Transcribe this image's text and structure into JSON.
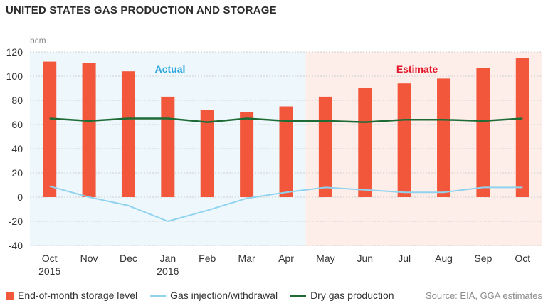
{
  "title": "UNITED STATES GAS PRODUCTION AND STORAGE",
  "unit": "bcm",
  "source": "Source: EIA, GGA estimates",
  "colors": {
    "bar": "#f2573c",
    "injection": "#8fd3ef",
    "production": "#1e6b36",
    "actual_bg": "#eef7fc",
    "estimate_bg": "#fdeee9",
    "actual_text": "#2aa6dc",
    "estimate_text": "#e2152a"
  },
  "chart_data": {
    "type": "bar",
    "categories": [
      "Oct",
      "Nov",
      "Dec",
      "Jan",
      "Feb",
      "Mar",
      "Apr",
      "May",
      "Jun",
      "Jul",
      "Aug",
      "Sep",
      "Oct"
    ],
    "category_sublabels": [
      "2015",
      "",
      "",
      "2016",
      "",
      "",
      "",
      "",
      "",
      "",
      "",
      "",
      ""
    ],
    "ylim": [
      -40,
      120
    ],
    "yticks": [
      -40,
      -20,
      0,
      20,
      40,
      60,
      80,
      100,
      120
    ],
    "ylabel": "bcm",
    "grid": true,
    "legend_position": "bottom",
    "regions": [
      {
        "label": "Actual",
        "from": "Oct 2015",
        "to": "Apr 2016"
      },
      {
        "label": "Estimate",
        "from": "May 2016",
        "to": "Oct 2016"
      }
    ],
    "series": [
      {
        "name": "End-of-month storage level",
        "type": "bar",
        "values": [
          112,
          111,
          104,
          83,
          72,
          70,
          75,
          83,
          90,
          94,
          98,
          107,
          115
        ]
      },
      {
        "name": "Gas injection/withdrawal",
        "type": "line",
        "values": [
          9,
          0,
          -7,
          -20,
          -11,
          -1,
          4,
          8,
          6,
          4,
          4,
          8,
          8
        ]
      },
      {
        "name": "Dry gas production",
        "type": "line",
        "values": [
          65,
          63,
          65,
          65,
          62,
          65,
          63,
          63,
          62,
          64,
          64,
          63,
          65
        ]
      }
    ]
  }
}
